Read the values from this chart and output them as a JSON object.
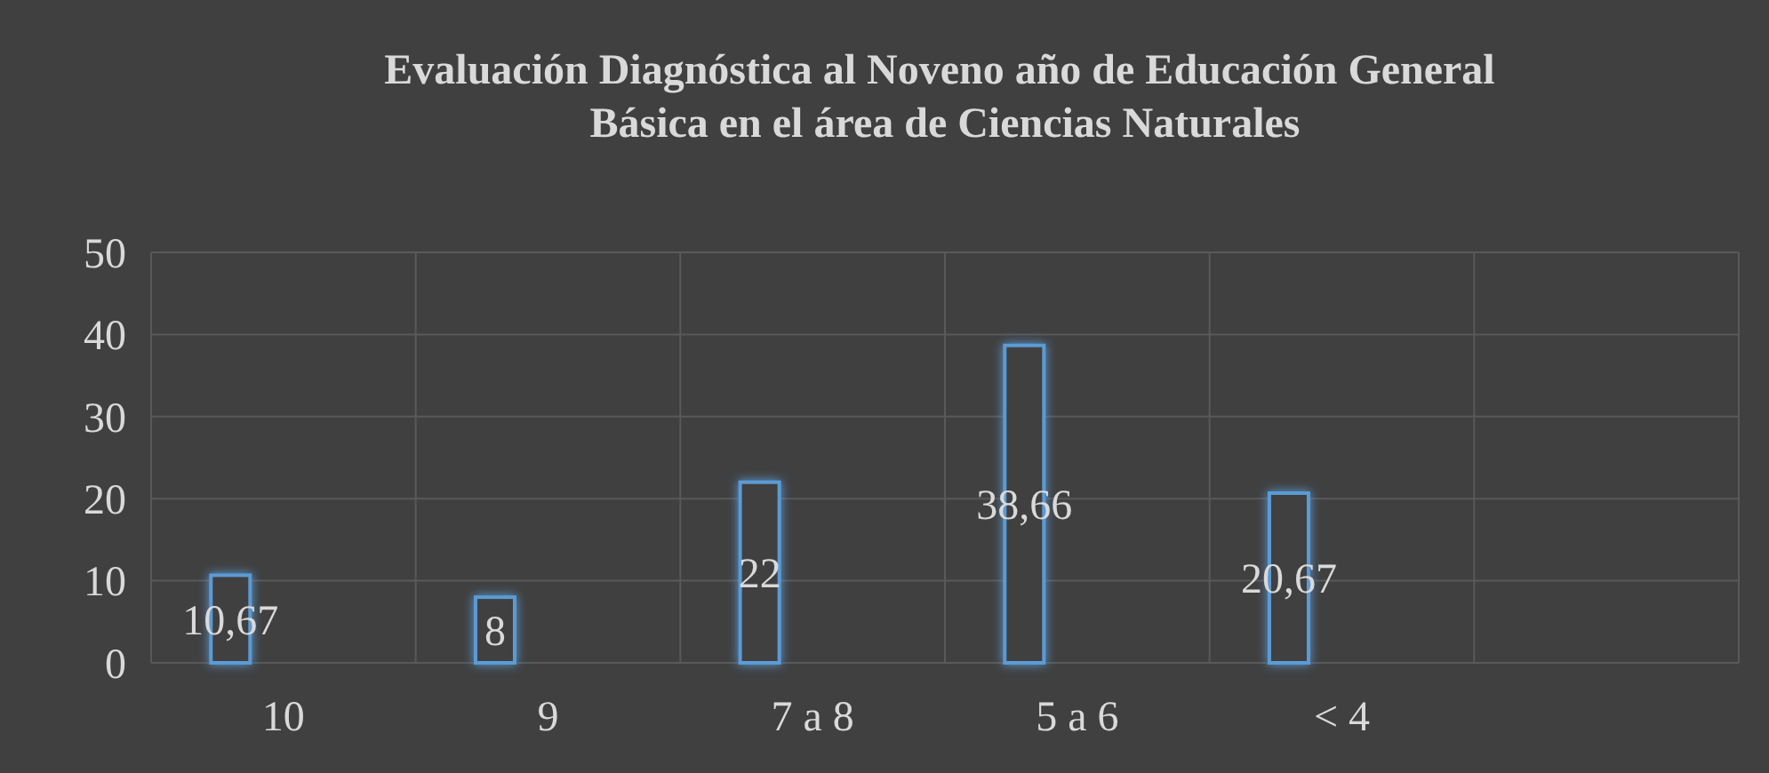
{
  "chart_data": {
    "type": "bar",
    "title": "Evaluación Diagnóstica al Noveno año de Educación General  Básica en el área de Ciencias Naturales",
    "categories": [
      "10",
      "9",
      "7 a 8",
      "5 a 6",
      "< 4",
      null
    ],
    "values": [
      10.67,
      8,
      22,
      38.66,
      20.67,
      null
    ],
    "value_labels": [
      "10,67",
      "8",
      "22",
      "38,66",
      "20,67",
      null
    ],
    "color": "#5b9bd5",
    "ylim": [
      0,
      50
    ],
    "yticks": [
      0,
      10,
      20,
      30,
      40,
      50
    ],
    "grid": true
  }
}
